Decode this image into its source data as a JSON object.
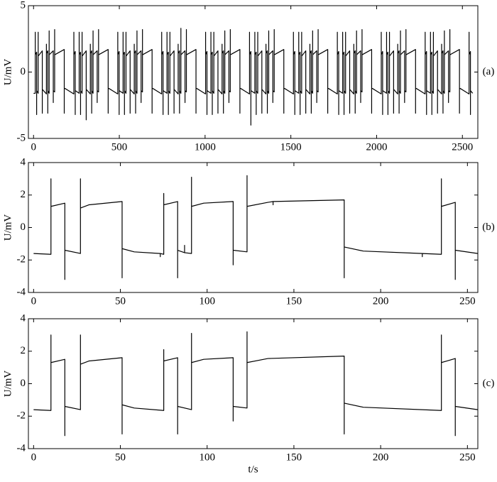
{
  "chart_data": [
    {
      "type": "line",
      "label": "(a)",
      "y_label": "U/mV",
      "color": "#000000",
      "xlim": [
        -30,
        2590
      ],
      "ylim": [
        -5,
        5
      ],
      "xticks": [
        0,
        500,
        1000,
        1500,
        2000,
        2500
      ],
      "yticks": [
        -5,
        0,
        5
      ],
      "x": [
        0,
        10,
        10,
        10,
        18,
        18,
        18,
        27,
        27,
        27,
        51,
        51,
        51,
        75,
        75,
        75,
        83,
        83,
        83,
        91,
        91,
        91,
        115,
        115,
        115,
        123,
        123,
        123,
        179,
        179,
        179,
        235,
        235,
        235,
        243,
        243,
        243,
        266,
        266,
        266,
        274,
        274,
        274,
        283,
        283,
        283,
        307,
        307,
        307,
        331,
        331,
        331,
        339,
        339,
        339,
        347,
        347,
        347,
        371,
        371,
        371,
        379,
        379,
        379,
        435,
        435,
        435,
        491,
        491,
        491,
        499,
        499,
        499,
        522,
        522,
        522,
        530,
        530,
        530,
        539,
        539,
        539,
        563,
        563,
        563,
        587,
        587,
        587,
        595,
        595,
        595,
        603,
        603,
        603,
        627,
        627,
        627,
        635,
        635,
        635,
        691,
        691,
        691,
        747,
        747,
        747,
        755,
        755,
        755,
        778,
        778,
        778,
        786,
        786,
        786,
        795,
        795,
        795,
        819,
        819,
        819,
        843,
        843,
        843,
        851,
        851,
        851,
        859,
        859,
        859,
        883,
        883,
        883,
        891,
        891,
        891,
        947,
        947,
        947,
        1003,
        1003,
        1003,
        1011,
        1011,
        1011,
        1034,
        1034,
        1034,
        1042,
        1042,
        1042,
        1051,
        1051,
        1051,
        1075,
        1075,
        1075,
        1099,
        1099,
        1099,
        1107,
        1107,
        1107,
        1115,
        1115,
        1115,
        1139,
        1139,
        1139,
        1147,
        1147,
        1147,
        1203,
        1203,
        1203,
        1259,
        1259,
        1259,
        1267,
        1267,
        1267,
        1290,
        1290,
        1290,
        1298,
        1298,
        1298,
        1307,
        1307,
        1307,
        1331,
        1331,
        1331,
        1355,
        1355,
        1355,
        1363,
        1363,
        1363,
        1371,
        1371,
        1371,
        1395,
        1395,
        1395,
        1403,
        1403,
        1403,
        1459,
        1459,
        1459,
        1515,
        1515,
        1515,
        1523,
        1523,
        1523,
        1546,
        1546,
        1546,
        1554,
        1554,
        1554,
        1563,
        1563,
        1563,
        1587,
        1587,
        1587,
        1611,
        1611,
        1611,
        1619,
        1619,
        1619,
        1627,
        1627,
        1627,
        1651,
        1651,
        1651,
        1659,
        1659,
        1659,
        1715,
        1715,
        1715,
        1771,
        1771,
        1771,
        1779,
        1779,
        1779,
        1802,
        1802,
        1802,
        1810,
        1810,
        1810,
        1819,
        1819,
        1819,
        1843,
        1843,
        1843,
        1867,
        1867,
        1867,
        1875,
        1875,
        1875,
        1883,
        1883,
        1883,
        1907,
        1907,
        1907,
        1915,
        1915,
        1915,
        1971,
        1971,
        1971,
        2027,
        2027,
        2027,
        2035,
        2035,
        2035,
        2058,
        2058,
        2058,
        2066,
        2066,
        2066,
        2075,
        2075,
        2075,
        2099,
        2099,
        2099,
        2123,
        2123,
        2123,
        2131,
        2131,
        2131,
        2139,
        2139,
        2139,
        2163,
        2163,
        2163,
        2171,
        2171,
        2171,
        2227,
        2227,
        2227,
        2283,
        2283,
        2283,
        2291,
        2291,
        2291,
        2314,
        2314,
        2314,
        2322,
        2322,
        2322,
        2331,
        2331,
        2331,
        2355,
        2355,
        2355,
        2379,
        2379,
        2379,
        2387,
        2387,
        2387,
        2395,
        2395,
        2395,
        2419,
        2419,
        2419,
        2427,
        2427,
        2427,
        2483,
        2483,
        2483,
        2539,
        2539,
        2539,
        2547,
        2547,
        2547,
        2560
      ],
      "values": [
        -1.6,
        -1.6,
        3.0,
        1.3,
        1.5,
        -3.2,
        -1.4,
        -1.6,
        3.0,
        1.2,
        1.6,
        -3.1,
        -1.3,
        -1.65,
        2.1,
        1.4,
        1.6,
        -3.1,
        -1.4,
        -1.6,
        3.1,
        1.3,
        1.6,
        -2.3,
        -1.4,
        -1.5,
        3.2,
        1.3,
        1.7,
        -3.1,
        -1.2,
        -1.65,
        3.0,
        1.3,
        1.55,
        -3.2,
        -1.4,
        -1.6,
        3.0,
        1.3,
        1.5,
        -3.2,
        -1.4,
        -1.6,
        3.0,
        1.2,
        1.6,
        -3.6,
        -1.3,
        -1.65,
        2.1,
        1.4,
        1.6,
        -3.1,
        -1.4,
        -1.6,
        3.1,
        1.3,
        1.6,
        -2.3,
        -1.4,
        -1.5,
        3.2,
        1.3,
        1.7,
        -3.1,
        -1.2,
        -1.65,
        3.0,
        1.3,
        1.55,
        -3.2,
        -1.4,
        -1.6,
        3.0,
        1.3,
        1.5,
        -3.2,
        -1.4,
        -1.6,
        3.0,
        1.2,
        1.6,
        -3.1,
        -1.3,
        -1.65,
        2.1,
        1.4,
        1.6,
        -3.1,
        -1.4,
        -1.6,
        3.1,
        1.3,
        1.6,
        -2.3,
        -1.4,
        -1.5,
        3.2,
        1.3,
        1.7,
        -3.1,
        -1.2,
        -1.65,
        3.0,
        1.3,
        1.55,
        -3.2,
        -1.4,
        -1.6,
        3.0,
        1.3,
        1.5,
        -3.2,
        -1.4,
        -1.6,
        3.0,
        1.2,
        1.6,
        -3.1,
        -1.3,
        -1.65,
        2.1,
        1.4,
        1.6,
        -3.1,
        -1.4,
        -1.6,
        3.3,
        1.3,
        1.6,
        -2.3,
        -1.4,
        -1.5,
        3.2,
        1.3,
        1.7,
        -3.1,
        -1.2,
        -1.65,
        3.0,
        1.3,
        1.55,
        -3.2,
        -1.4,
        -1.6,
        3.0,
        1.3,
        1.5,
        -3.2,
        -1.4,
        -1.6,
        3.0,
        1.2,
        1.6,
        -3.1,
        -1.3,
        -1.65,
        2.1,
        1.4,
        1.6,
        -3.1,
        -1.4,
        -1.6,
        3.1,
        1.3,
        1.6,
        -2.3,
        -1.4,
        -1.5,
        3.2,
        1.3,
        1.7,
        -3.1,
        -1.2,
        -1.65,
        3.0,
        1.3,
        1.55,
        -4.0,
        -1.4,
        -1.6,
        3.0,
        1.3,
        1.5,
        -3.2,
        -1.4,
        -1.6,
        3.0,
        1.2,
        1.6,
        -3.1,
        -1.3,
        -1.65,
        2.1,
        1.4,
        1.6,
        -3.1,
        -1.4,
        -1.6,
        3.1,
        1.3,
        1.6,
        -2.3,
        -1.4,
        -1.5,
        3.2,
        1.3,
        1.7,
        -3.1,
        -1.2,
        -1.65,
        3.0,
        1.3,
        1.55,
        -3.2,
        -1.4,
        -1.6,
        3.0,
        1.3,
        1.5,
        -3.2,
        -1.4,
        -1.6,
        3.0,
        1.2,
        1.6,
        -3.1,
        -1.3,
        -1.65,
        2.1,
        1.4,
        1.6,
        -3.1,
        -1.4,
        -1.6,
        3.1,
        1.3,
        1.6,
        -2.3,
        -1.4,
        -1.5,
        3.2,
        1.3,
        1.7,
        -3.1,
        -1.2,
        -1.65,
        3.0,
        1.3,
        1.55,
        -3.2,
        -1.4,
        -1.6,
        3.0,
        1.3,
        1.5,
        -3.2,
        -1.4,
        -1.6,
        3.0,
        1.2,
        1.6,
        -3.1,
        -1.3,
        -1.65,
        2.1,
        1.4,
        1.6,
        -3.1,
        -1.4,
        -1.6,
        3.1,
        1.3,
        1.6,
        -2.3,
        -1.4,
        -1.5,
        3.2,
        1.3,
        1.7,
        -3.1,
        -1.2,
        -1.65,
        3.0,
        1.3,
        1.55,
        -3.2,
        -1.4,
        -1.6,
        3.0,
        1.3,
        1.5,
        -3.2,
        -1.4,
        -1.6,
        3.0,
        1.2,
        1.6,
        -3.1,
        -1.3,
        -1.65,
        2.1,
        1.4,
        1.6,
        -3.1,
        -1.4,
        -1.6,
        3.1,
        1.3,
        1.6,
        -2.3,
        -1.4,
        -1.5,
        3.2,
        1.3,
        1.7,
        -3.1,
        -1.2,
        -1.65,
        3.0,
        1.3,
        1.55,
        -3.2,
        -1.4,
        -1.6,
        3.0,
        1.3,
        1.5,
        -3.2,
        -1.4,
        -1.6,
        3.0,
        1.2,
        1.6,
        -3.1,
        -1.3,
        -1.65,
        2.1,
        1.4,
        1.6,
        -3.1,
        -1.4,
        -1.6,
        3.1,
        1.3,
        1.6,
        -2.3,
        -1.4,
        -1.5,
        3.2,
        1.3,
        1.7,
        -3.1,
        -1.2,
        -1.65,
        3.0,
        1.3,
        1.55,
        -3.2,
        -1.4,
        -1.6
      ]
    },
    {
      "type": "line",
      "label": "(b)",
      "y_label": "U/mV",
      "color": "#000000",
      "xlim": [
        -3,
        256
      ],
      "ylim": [
        -4,
        4
      ],
      "xticks": [
        0,
        50,
        100,
        150,
        200,
        250
      ],
      "yticks": [
        -4,
        -2,
        0,
        2,
        4
      ],
      "x": [
        0,
        10,
        10,
        10,
        18,
        18,
        18,
        27,
        27,
        27,
        32,
        51,
        51,
        51,
        58,
        73,
        73,
        73,
        75,
        75,
        75,
        83,
        83,
        83,
        87,
        87,
        87,
        91,
        91,
        91,
        98,
        115,
        115,
        115,
        123,
        123,
        123,
        135,
        138,
        138,
        138,
        179,
        179,
        179,
        190,
        224,
        224,
        224,
        235,
        235,
        235,
        243,
        243,
        243,
        256
      ],
      "values": [
        -1.6,
        -1.65,
        3.0,
        1.3,
        1.5,
        -3.2,
        -1.4,
        -1.6,
        3.0,
        1.2,
        1.4,
        1.6,
        -3.1,
        -1.3,
        -1.5,
        -1.6,
        -1.8,
        -1.6,
        -1.65,
        2.1,
        1.4,
        1.6,
        -3.1,
        -1.4,
        -1.55,
        -1.1,
        -1.55,
        -1.6,
        3.1,
        1.3,
        1.5,
        1.6,
        -2.3,
        -1.4,
        -1.5,
        3.2,
        1.3,
        1.55,
        1.6,
        1.4,
        1.6,
        1.7,
        -3.1,
        -1.2,
        -1.45,
        -1.6,
        -1.8,
        -1.6,
        -1.65,
        3.0,
        1.3,
        1.55,
        -3.2,
        -1.4,
        -1.6
      ]
    },
    {
      "type": "line",
      "label": "(c)",
      "y_label": "U/mV",
      "x_label": "t/s",
      "color": "#000000",
      "xlim": [
        -3,
        256
      ],
      "ylim": [
        -4,
        4
      ],
      "xticks": [
        0,
        50,
        100,
        150,
        200,
        250
      ],
      "yticks": [
        -4,
        -2,
        0,
        2,
        4
      ],
      "x": [
        0,
        10,
        10,
        10,
        18,
        18,
        18,
        27,
        27,
        27,
        32,
        51,
        51,
        51,
        58,
        75,
        75,
        75,
        83,
        83,
        83,
        91,
        91,
        91,
        98,
        115,
        115,
        115,
        123,
        123,
        123,
        135,
        179,
        179,
        179,
        190,
        235,
        235,
        235,
        243,
        243,
        243,
        256
      ],
      "values": [
        -1.6,
        -1.65,
        3.0,
        1.3,
        1.5,
        -3.2,
        -1.4,
        -1.6,
        3.0,
        1.2,
        1.4,
        1.6,
        -3.1,
        -1.3,
        -1.5,
        -1.65,
        2.1,
        1.4,
        1.6,
        -3.1,
        -1.4,
        -1.6,
        3.1,
        1.3,
        1.5,
        1.6,
        -2.3,
        -1.4,
        -1.5,
        3.2,
        1.3,
        1.55,
        1.7,
        -3.1,
        -1.2,
        -1.45,
        -1.65,
        3.0,
        1.3,
        1.55,
        -3.2,
        -1.4,
        -1.6
      ]
    }
  ]
}
